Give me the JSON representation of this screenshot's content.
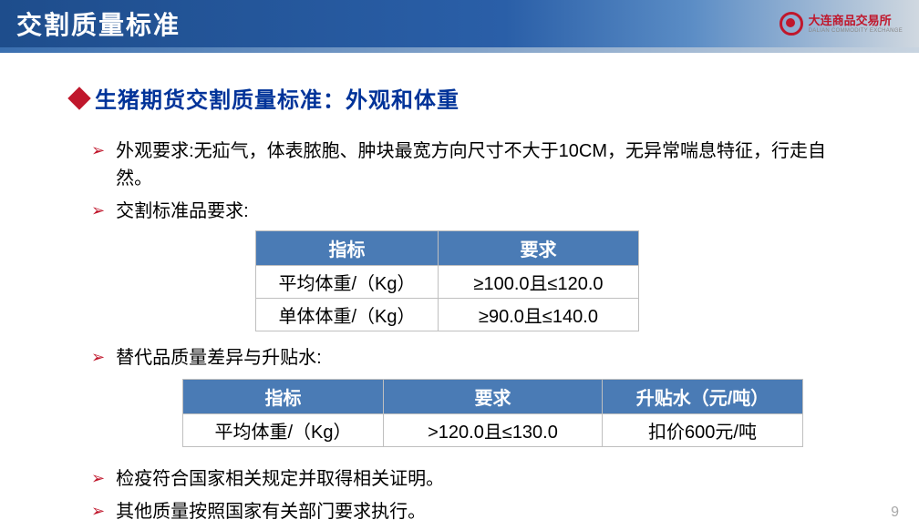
{
  "header": {
    "title": "交割质量标准",
    "logo_cn": "大连商品交易所",
    "logo_en": "DALIAN COMMODITY EXCHANGE"
  },
  "section": {
    "title": "生猪期货交割质量标准：外观和体重"
  },
  "bullets": {
    "b1": "外观要求:无疝气，体表脓胞、肿块最宽方向尺寸不大于10CM，无异常喘息特征，行走自然。",
    "b2": "交割标准品要求:",
    "b3": "替代品质量差异与升贴水:",
    "b4": "检疫符合国家相关规定并取得相关证明。",
    "b5": "其他质量按照国家有关部门要求执行。"
  },
  "table1": {
    "headers": [
      "指标",
      "要求"
    ],
    "rows": [
      [
        "平均体重/（Kg）",
        "≥100.0且≤120.0"
      ],
      [
        "单体体重/（Kg）",
        "≥90.0且≤140.0"
      ]
    ],
    "header_bg": "#4a7bb5",
    "header_color": "#ffffff",
    "border_color": "#bfbfbf"
  },
  "table2": {
    "headers": [
      "指标",
      "要求",
      "升贴水（元/吨）"
    ],
    "rows": [
      [
        "平均体重/（Kg）",
        ">120.0且≤130.0",
        "扣价600元/吨"
      ]
    ],
    "header_bg": "#4a7bb5",
    "header_color": "#ffffff",
    "border_color": "#bfbfbf"
  },
  "page_number": "9",
  "colors": {
    "title_gradient_start": "#1e4d8c",
    "title_gradient_end": "#d0d8e0",
    "accent_red": "#c0172c",
    "heading_blue": "#003399",
    "background": "#ffffff"
  }
}
